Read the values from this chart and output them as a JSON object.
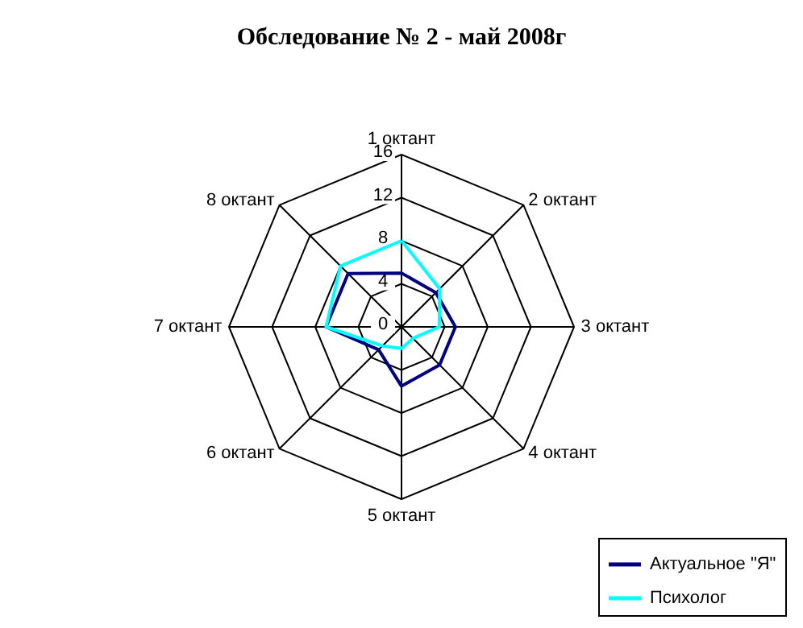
{
  "chart_data": {
    "type": "radar",
    "title": "Обследование № 2 - май  2008г",
    "categories": [
      "1 октант",
      "2 октант",
      "3 октант",
      "4 октант",
      "5 октант",
      "6 октант",
      "7 октант",
      "8 октант"
    ],
    "series": [
      {
        "name": "Актуальное \"Я\"",
        "color": "#000080",
        "values": [
          5,
          4.5,
          5,
          5,
          5.5,
          3,
          7,
          7
        ]
      },
      {
        "name": "Психолог",
        "color": "#00ffff",
        "values": [
          8,
          5,
          3.5,
          1.5,
          2,
          2.5,
          7,
          8
        ]
      }
    ],
    "ylim": [
      0,
      16
    ],
    "yticks": [
      0,
      4,
      8,
      12,
      16
    ],
    "grid": true,
    "legend": "bottom right"
  }
}
